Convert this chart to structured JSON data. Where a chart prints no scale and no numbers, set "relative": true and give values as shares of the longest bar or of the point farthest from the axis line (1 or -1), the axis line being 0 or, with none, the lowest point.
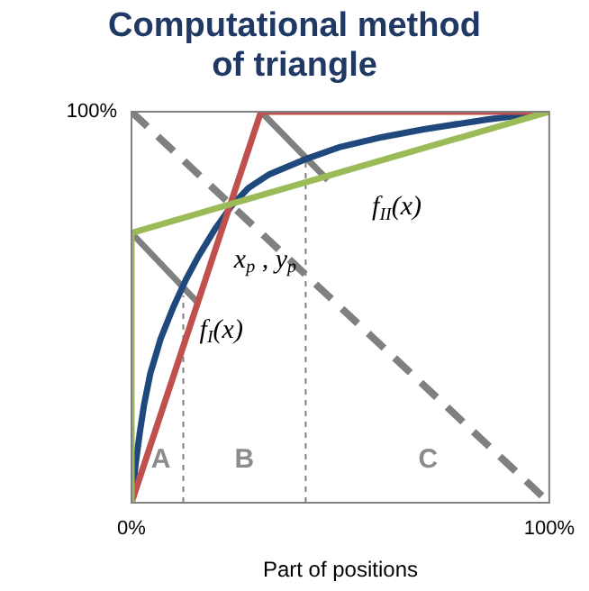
{
  "chart_data": {
    "type": "line",
    "title": "Computational method of triangle",
    "xlabel": "Part of positions",
    "relative": true,
    "xlim": [
      0,
      100
    ],
    "xticks": [
      {
        "value": 0,
        "label": "0%"
      },
      {
        "value": 100,
        "label": "100%"
      }
    ],
    "legend": false,
    "marker": "none",
    "series": [
      {
        "color": "#9bbb59",
        "x": [
          0,
          0,
          100
        ],
        "values": [
          0,
          0.69,
          1
        ]
      },
      {
        "color": "#c0504d",
        "x": [
          0,
          31,
          100
        ],
        "values": [
          0,
          1,
          1
        ]
      },
      {
        "color": "#1f497d",
        "x": [
          0,
          1,
          2,
          3,
          4.5,
          7,
          10,
          13,
          16,
          20,
          24,
          28,
          33,
          42,
          50,
          60,
          70,
          85,
          100
        ],
        "values": [
          0,
          0.1,
          0.18,
          0.25,
          0.33,
          0.42,
          0.5,
          0.57,
          0.63,
          0.7,
          0.76,
          0.805,
          0.84,
          0.88,
          0.91,
          0.935,
          0.955,
          0.98,
          1
        ]
      },
      {
        "color": "#808080",
        "line_style": "dashed",
        "x": [
          0,
          100
        ],
        "values": [
          1,
          0
        ]
      },
      {
        "color": "#808080",
        "x": [
          0,
          16
        ],
        "values": [
          0.69,
          0.51
        ]
      },
      {
        "color": "#808080",
        "x": [
          31,
          47
        ],
        "values": [
          1,
          0.825
        ]
      },
      {
        "color": "#808080",
        "line_style": "dotted",
        "x": [
          12.4,
          12.4
        ],
        "values": [
          0,
          0.53
        ]
      },
      {
        "color": "#808080",
        "line_style": "dotted",
        "x": [
          41.7,
          41.7
        ],
        "values": [
          0,
          0.875
        ]
      }
    ],
    "annotations": [
      "100%",
      "f$_{II}$(x)",
      "x$_{p}$ , y$_{p}$",
      "f$_{I}$(x)",
      "A",
      "B",
      "C"
    ]
  }
}
